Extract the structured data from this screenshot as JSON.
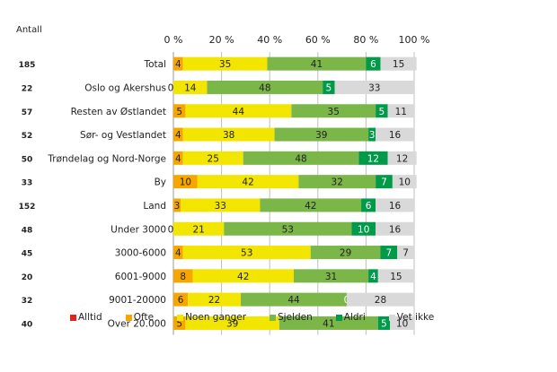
{
  "chart_data": {
    "type": "bar",
    "orientation": "horizontal",
    "stacked": "percent",
    "title": "",
    "count_header": "Antall",
    "xlabel": "",
    "ylabel": "",
    "xlim": [
      0,
      100
    ],
    "x_ticks": [
      "0 %",
      "20 %",
      "40 %",
      "60 %",
      "80 %",
      "100 %"
    ],
    "grid": true,
    "legend_position": "bottom",
    "categories": [
      "Total",
      "Oslo og Akershus",
      "Resten av Østlandet",
      "Sør- og Vestlandet",
      "Trøndelag og Nord-Norge",
      "By",
      "Land",
      "Under 3000",
      "3000-6000",
      "6001-9000",
      "9001-20000",
      "Over 20.000"
    ],
    "counts": [
      "185",
      "22",
      "57",
      "52",
      "50",
      "33",
      "152",
      "48",
      "45",
      "20",
      "32",
      "40"
    ],
    "series": [
      {
        "name": "Alltid",
        "color": "#e2231a",
        "values": [
          0,
          0,
          0,
          0,
          0,
          0,
          0,
          0,
          0,
          0,
          0,
          0
        ]
      },
      {
        "name": "Ofte",
        "color": "#f7a600",
        "values": [
          4,
          0,
          5,
          4,
          4,
          10,
          3,
          0,
          4,
          8,
          6,
          5
        ]
      },
      {
        "name": "Noen ganger",
        "color": "#f2e500",
        "values": [
          35,
          14,
          44,
          38,
          25,
          42,
          33,
          21,
          53,
          42,
          22,
          39
        ]
      },
      {
        "name": "Sjelden",
        "color": "#7ab648",
        "values": [
          41,
          48,
          35,
          39,
          48,
          32,
          42,
          53,
          29,
          31,
          44,
          41
        ]
      },
      {
        "name": "Aldri",
        "color": "#009a49",
        "values": [
          6,
          5,
          5,
          3,
          12,
          7,
          6,
          10,
          7,
          4,
          0,
          5
        ]
      },
      {
        "name": "Vet ikke",
        "color": "#d9d9d9",
        "values": [
          15,
          33,
          11,
          16,
          12,
          10,
          16,
          16,
          7,
          15,
          28,
          10
        ]
      }
    ]
  }
}
